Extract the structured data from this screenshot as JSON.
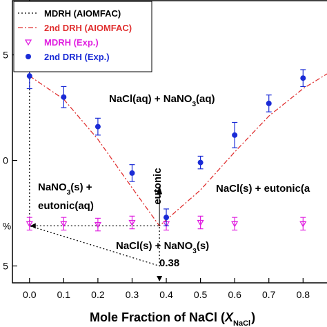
{
  "chart_data": {
    "type": "scatter",
    "xlabel": "Mole Fraction of NaCl (X",
    "xlabel_sub": "NaCl",
    "xlabel_end": ")",
    "xlim": [
      -0.05,
      0.87
    ],
    "ylim": [
      31,
      98
    ],
    "grid": false,
    "legend_position": "top-left",
    "x_ticks": [
      "0.0",
      "0.1",
      "0.2",
      "0.3",
      "0.4",
      "0.5",
      "0.6",
      "0.7",
      "0.8",
      "0."
    ],
    "y_ticks": [
      "5",
      "0",
      "5"
    ],
    "y_mark_label": "%",
    "series": [
      {
        "name": "MDRH (AIOMFAC)",
        "style": "dotted",
        "color": "#000000",
        "points": [
          [
            0.0,
            44.5
          ],
          [
            0.38,
            44.5
          ],
          [
            0.38,
            35.0
          ],
          [
            0.0,
            44.5
          ],
          [
            0.0,
            98.0
          ]
        ]
      },
      {
        "name": "2nd DRH (AIOMFAC)",
        "style": "dash-dot",
        "color": "#e03030",
        "points": [
          [
            0.0,
            80.0
          ],
          [
            0.1,
            74.5
          ],
          [
            0.2,
            65.0
          ],
          [
            0.3,
            53.5
          ],
          [
            0.38,
            44.5
          ],
          [
            0.5,
            53.0
          ],
          [
            0.6,
            62.0
          ],
          [
            0.7,
            70.5
          ],
          [
            0.8,
            77.0
          ],
          [
            0.87,
            80.5
          ]
        ]
      },
      {
        "name": "MDRH (Exp.)",
        "marker": "triangle-down",
        "color": "#e020e0",
        "x": [
          0.0,
          0.1,
          0.2,
          0.3,
          0.4,
          0.5,
          0.6,
          0.8
        ],
        "y": [
          45.0,
          45.0,
          44.8,
          45.3,
          45.0,
          45.3,
          45.0,
          45.0
        ],
        "err": [
          1.5,
          1.5,
          1.5,
          1.5,
          1.5,
          1.5,
          1.5,
          1.5
        ]
      },
      {
        "name": "2nd DRH (Exp.)",
        "marker": "circle",
        "color": "#1a2bd6",
        "x": [
          0.0,
          0.1,
          0.2,
          0.3,
          0.4,
          0.5,
          0.6,
          0.7,
          0.8
        ],
        "y": [
          80.0,
          75.0,
          68.0,
          57.0,
          46.5,
          59.5,
          66.0,
          73.5,
          79.5
        ],
        "err": [
          3.0,
          2.5,
          2.0,
          2.0,
          2.0,
          1.5,
          3.0,
          2.0,
          2.0
        ]
      }
    ],
    "annotations": {
      "region_top": "NaCl(aq) + NaNO3(aq)",
      "region_left_1": "NaNO3(s) +",
      "region_left_2": "eutonic(aq)",
      "region_right": "NaCl(s) + eutonic(a",
      "region_bottom": "NaCl(s) + NaNO3(s)",
      "eutonic_label": "eutonic",
      "eutonic_x_label": "0.38"
    }
  },
  "colors": {
    "mdrh_model": "#000000",
    "drh_model": "#e03030",
    "mdrh_exp": "#e020e0",
    "drh_exp": "#1a2bd6"
  }
}
